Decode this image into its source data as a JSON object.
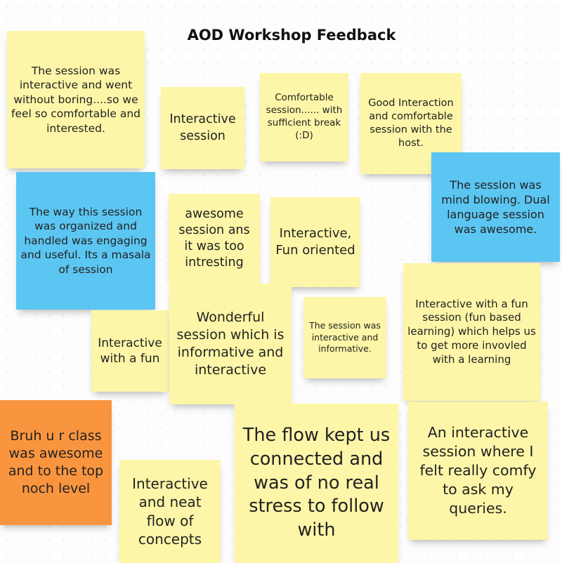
{
  "board": {
    "title": "AOD Workshop Feedback",
    "colors": {
      "yellow": "#fdf6a8",
      "blue": "#5cc6f2",
      "orange": "#f9953f"
    },
    "notes": [
      {
        "text": "The session was interactive and went without boring....so we feel so comfortable and interested.",
        "color": "yellow"
      },
      {
        "text": "Interactive session",
        "color": "yellow"
      },
      {
        "text": "Comfortable session...... with sufficient break (:D)",
        "color": "yellow"
      },
      {
        "text": "Good Interaction and comfortable session with the host.",
        "color": "yellow"
      },
      {
        "text": "The  session was mind blowing. Dual language session was awesome.",
        "color": "blue"
      },
      {
        "text": "The way this session was organized and handled was engaging and useful. Its a masala of session",
        "color": "blue"
      },
      {
        "text": "awesome session ans it was too intresting",
        "color": "yellow"
      },
      {
        "text": "Interactive, Fun oriented",
        "color": "yellow"
      },
      {
        "text": "Interactive with  a fun session (fun based learning) which helps us to get more invovled with a learning",
        "color": "yellow"
      },
      {
        "text": "Interactive with a fun",
        "color": "yellow"
      },
      {
        "text": "Wonderful session which is informative and interactive",
        "color": "yellow"
      },
      {
        "text": "The session was interactive and informative.",
        "color": "yellow"
      },
      {
        "text": "Bruh u r class was awesome and to the top noch level",
        "color": "orange"
      },
      {
        "text": "Interactive and neat flow of concepts",
        "color": "yellow"
      },
      {
        "text": "The flow kept us connected and was of no real stress to follow with",
        "color": "yellow"
      },
      {
        "text": "An interactive session where I felt really comfy to ask my queries.",
        "color": "yellow"
      }
    ]
  }
}
